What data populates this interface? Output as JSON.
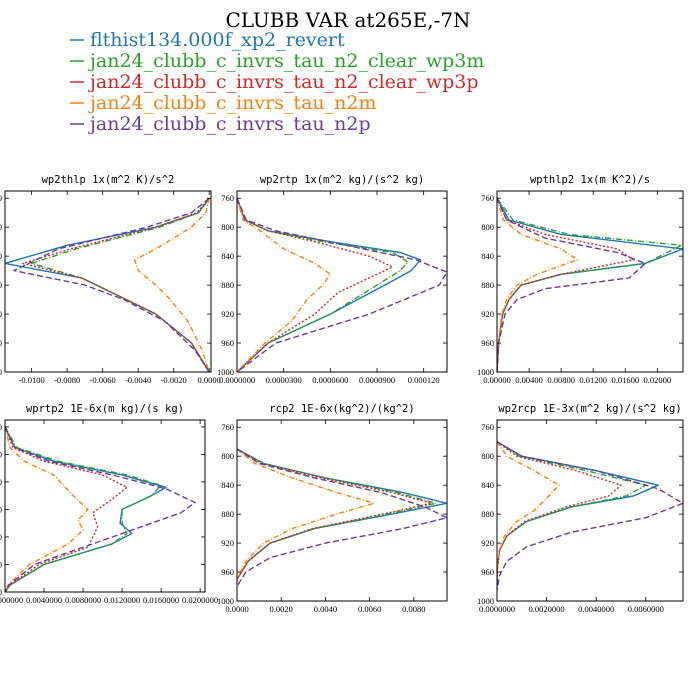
{
  "title": "CLUBB VAR at265E,-7N",
  "legend": [
    {
      "label": "flthist134.000f_xp2_revert",
      "color": "#1f77b4",
      "dash": ""
    },
    {
      "label": "jan24_clubb_c_invrs_tau_n2_clear_wp3m",
      "color": "#2ca02c",
      "dash": "6,2,1,2"
    },
    {
      "label": "jan24_clubb_c_invrs_tau_n2_clear_wp3p",
      "color": "#d62728",
      "dash": "2,2"
    },
    {
      "label": "jan24_clubb_c_invrs_tau_n2m",
      "color": "#ff7f0e",
      "dash": "5,2,1,2"
    },
    {
      "label": "jan24_clubb_c_invrs_tau_n2p",
      "color": "#6a3d9a",
      "dash": "6,3"
    }
  ],
  "chart_data": [
    {
      "type": "line",
      "title": "wp2thlp  1x(m^2 K)/s^2",
      "xlim": [
        -0.0115,
        0.0001
      ],
      "ylim": [
        1000,
        750
      ],
      "xticks": [
        "-0.0100",
        "-0.0080",
        "-0.0060",
        "-0.0040",
        "-0.0020",
        "0.0000"
      ],
      "xtick_values": [
        -0.01,
        -0.008,
        -0.006,
        -0.004,
        -0.002,
        0.0
      ],
      "yticks": [
        "760",
        "800",
        "840",
        "880",
        "920",
        "960",
        "1000"
      ],
      "series": [
        {
          "y": [
            760,
            780,
            800,
            825,
            850,
            870,
            890,
            920,
            960,
            1000
          ],
          "values": [
            0.0,
            -0.0006,
            -0.003,
            -0.008,
            -0.0115,
            -0.0072,
            -0.0055,
            -0.003,
            -0.001,
            0.0
          ]
        },
        {
          "y": [
            760,
            780,
            800,
            830,
            850,
            870,
            890,
            920,
            960,
            1000
          ],
          "values": [
            0.0,
            -0.0006,
            -0.0028,
            -0.0075,
            -0.01,
            -0.0072,
            -0.0055,
            -0.003,
            -0.001,
            0.0
          ]
        },
        {
          "y": [
            760,
            780,
            800,
            830,
            850,
            870,
            890,
            920,
            960,
            1000
          ],
          "values": [
            0.0,
            -0.0007,
            -0.003,
            -0.0078,
            -0.0105,
            -0.0072,
            -0.0055,
            -0.003,
            -0.001,
            0.0
          ]
        },
        {
          "y": [
            760,
            780,
            800,
            830,
            845,
            860,
            880,
            900,
            930,
            970,
            1000
          ],
          "values": [
            0.0,
            -0.0002,
            -0.001,
            -0.003,
            -0.0042,
            -0.004,
            -0.003,
            -0.0022,
            -0.0012,
            -0.0004,
            0.0
          ]
        },
        {
          "y": [
            760,
            780,
            800,
            830,
            860,
            880,
            900,
            930,
            970,
            1000
          ],
          "values": [
            0.0,
            -0.001,
            -0.0035,
            -0.0085,
            -0.011,
            -0.007,
            -0.0048,
            -0.0025,
            -0.0008,
            0.0
          ]
        }
      ]
    },
    {
      "type": "line",
      "title": "wp2rtp  1x(m^2 kg)/(s^2 kg)",
      "xlim": [
        0.0,
        0.000135
      ],
      "ylim": [
        1000,
        750
      ],
      "xticks": [
        "0.0000000",
        "0.0000300",
        "0.0000600",
        "0.0000900",
        "0.000120"
      ],
      "xtick_values": [
        0.0,
        3e-05,
        6e-05,
        9e-05,
        0.00012
      ],
      "yticks": [
        "760",
        "800",
        "840",
        "880",
        "920",
        "960",
        "1000"
      ],
      "series": [
        {
          "y": [
            760,
            790,
            805,
            820,
            835,
            845,
            860,
            880,
            920,
            960,
            1000
          ],
          "values": [
            0.0,
            5e-06,
            2e-05,
            6e-05,
            0.000105,
            0.000118,
            0.000112,
            9.5e-05,
            6e-05,
            2e-05,
            0.0
          ]
        },
        {
          "y": [
            760,
            790,
            805,
            820,
            835,
            848,
            860,
            880,
            920,
            960,
            1000
          ],
          "values": [
            0.0,
            5e-06,
            2e-05,
            5.5e-05,
            0.0001,
            0.00011,
            0.000105,
            9e-05,
            6e-05,
            2e-05,
            0.0
          ]
        },
        {
          "y": [
            760,
            790,
            805,
            820,
            840,
            855,
            870,
            890,
            920,
            960,
            1000
          ],
          "values": [
            0.0,
            5e-06,
            2e-05,
            5e-05,
            8.5e-05,
            0.0001,
            8.5e-05,
            6.5e-05,
            5e-05,
            2e-05,
            0.0
          ]
        },
        {
          "y": [
            760,
            790,
            805,
            830,
            850,
            865,
            880,
            900,
            930,
            960,
            1000
          ],
          "values": [
            0.0,
            4e-06,
            1.5e-05,
            3e-05,
            5e-05,
            6e-05,
            5.5e-05,
            4.5e-05,
            3.5e-05,
            1.8e-05,
            0.0
          ]
        },
        {
          "y": [
            760,
            790,
            805,
            825,
            845,
            862,
            880,
            920,
            960,
            1000
          ],
          "values": [
            0.0,
            6e-06,
            2.5e-05,
            7e-05,
            0.000115,
            0.000135,
            0.00013,
            8.5e-05,
            2.5e-05,
            0.0
          ]
        }
      ]
    },
    {
      "type": "line",
      "title": "wpthlp2  1x(m K^2)/s",
      "xlim": [
        0.0,
        0.0232
      ],
      "ylim": [
        1000,
        750
      ],
      "xticks": [
        "0.00000",
        "0.00400",
        "0.00800",
        "0.01200",
        "0.01600",
        "0.02000"
      ],
      "xtick_values": [
        0.0,
        0.004,
        0.008,
        0.012,
        0.016,
        0.02
      ],
      "yticks": [
        "760",
        "800",
        "840",
        "880",
        "920",
        "960",
        "1000"
      ],
      "series": [
        {
          "y": [
            760,
            790,
            810,
            830,
            850,
            865,
            880,
            900,
            920,
            960,
            1000
          ],
          "values": [
            0.0,
            0.0015,
            0.008,
            0.0232,
            0.0185,
            0.008,
            0.003,
            0.0015,
            0.0007,
            0.0002,
            0.0
          ]
        },
        {
          "y": [
            760,
            790,
            810,
            825,
            850,
            865,
            880,
            900,
            920,
            960,
            1000
          ],
          "values": [
            0.0,
            0.002,
            0.009,
            0.023,
            0.0185,
            0.008,
            0.003,
            0.0015,
            0.0007,
            0.0002,
            0.0
          ]
        },
        {
          "y": [
            760,
            790,
            810,
            830,
            845,
            865,
            880,
            900,
            920,
            960,
            1000
          ],
          "values": [
            0.0,
            0.0012,
            0.006,
            0.015,
            0.017,
            0.008,
            0.003,
            0.0015,
            0.0007,
            0.0002,
            0.0
          ]
        },
        {
          "y": [
            760,
            790,
            810,
            830,
            845,
            865,
            880,
            900,
            920,
            960,
            1000
          ],
          "values": [
            0.0,
            0.0008,
            0.003,
            0.008,
            0.01,
            0.005,
            0.0025,
            0.0012,
            0.0006,
            0.0002,
            0.0
          ]
        },
        {
          "y": [
            760,
            790,
            815,
            835,
            850,
            870,
            885,
            900,
            920,
            960,
            1000
          ],
          "values": [
            0.0,
            0.0012,
            0.006,
            0.015,
            0.0185,
            0.0165,
            0.006,
            0.0025,
            0.001,
            0.0002,
            0.0
          ]
        }
      ]
    },
    {
      "type": "line",
      "title": "wprtp2  1E-6x(m kg)/(s kg)",
      "xlim": [
        0.0,
        0.0205
      ],
      "ylim": [
        1000,
        750
      ],
      "xticks": [
        "0.0000000",
        "0.0040000",
        "0.0080000",
        "0.0120000",
        "0.0160000",
        "0.0200000"
      ],
      "xtick_values": [
        0.0,
        0.004,
        0.008,
        0.012,
        0.016,
        0.02
      ],
      "yticks": [
        "760",
        "800",
        "840",
        "880",
        "920",
        "960",
        "1000"
      ],
      "series": [
        {
          "y": [
            760,
            790,
            810,
            830,
            848,
            860,
            880,
            900,
            915,
            930,
            960,
            990,
            1000
          ],
          "values": [
            0.0,
            0.001,
            0.005,
            0.012,
            0.0165,
            0.015,
            0.012,
            0.0118,
            0.013,
            0.011,
            0.004,
            0.0005,
            0.0
          ]
        },
        {
          "y": [
            760,
            790,
            810,
            830,
            845,
            860,
            880,
            900,
            915,
            930,
            960,
            990,
            1000
          ],
          "values": [
            0.0,
            0.0012,
            0.0055,
            0.0125,
            0.016,
            0.015,
            0.012,
            0.012,
            0.0125,
            0.011,
            0.004,
            0.0005,
            0.0
          ]
        },
        {
          "y": [
            760,
            790,
            810,
            830,
            848,
            865,
            885,
            905,
            920,
            935,
            960,
            990,
            1000
          ],
          "values": [
            0.0,
            0.0008,
            0.004,
            0.01,
            0.0125,
            0.011,
            0.009,
            0.0095,
            0.009,
            0.0085,
            0.0035,
            0.0005,
            0.0
          ]
        },
        {
          "y": [
            760,
            790,
            810,
            830,
            845,
            860,
            880,
            895,
            910,
            930,
            960,
            990,
            1000
          ],
          "values": [
            0.0,
            0.0005,
            0.002,
            0.005,
            0.006,
            0.007,
            0.0085,
            0.0075,
            0.008,
            0.0065,
            0.0025,
            0.0003,
            0.0
          ]
        },
        {
          "y": [
            760,
            790,
            810,
            830,
            850,
            870,
            885,
            900,
            920,
            940,
            960,
            990,
            1000
          ],
          "values": [
            0.0,
            0.001,
            0.0045,
            0.011,
            0.0165,
            0.0195,
            0.018,
            0.015,
            0.011,
            0.007,
            0.003,
            0.0004,
            0.0
          ]
        }
      ]
    },
    {
      "type": "line",
      "title": "rcp2  1E-6x(kg^2)/(kg^2)",
      "xlim": [
        0.0,
        0.0095
      ],
      "ylim": [
        1000,
        750
      ],
      "xticks": [
        "0.0000",
        "0.0020",
        "0.0040",
        "0.0060",
        "0.0080"
      ],
      "xtick_values": [
        0.0,
        0.002,
        0.004,
        0.006,
        0.008
      ],
      "yticks": [
        "760",
        "800",
        "840",
        "880",
        "920",
        "960",
        "1000"
      ],
      "series": [
        {
          "y": [
            790,
            810,
            830,
            850,
            865,
            880,
            900,
            920,
            945,
            970
          ],
          "values": [
            0.0,
            0.0012,
            0.004,
            0.0075,
            0.0095,
            0.007,
            0.0035,
            0.0015,
            0.0005,
            0.0
          ]
        },
        {
          "y": [
            790,
            810,
            830,
            850,
            865,
            880,
            900,
            920,
            945,
            970
          ],
          "values": [
            0.0,
            0.0012,
            0.004,
            0.0072,
            0.009,
            0.0068,
            0.0035,
            0.0015,
            0.0005,
            0.0
          ]
        },
        {
          "y": [
            790,
            810,
            830,
            850,
            865,
            880,
            900,
            920,
            945,
            970
          ],
          "values": [
            0.0,
            0.0011,
            0.0038,
            0.007,
            0.0088,
            0.0066,
            0.0034,
            0.0015,
            0.0005,
            0.0
          ]
        },
        {
          "y": [
            790,
            810,
            830,
            850,
            865,
            880,
            900,
            920,
            945,
            970
          ],
          "values": [
            0.0,
            0.0008,
            0.0025,
            0.0045,
            0.0062,
            0.0045,
            0.0025,
            0.0012,
            0.0004,
            0.0
          ]
        },
        {
          "y": [
            790,
            810,
            830,
            850,
            870,
            885,
            900,
            920,
            940,
            960,
            980
          ],
          "values": [
            0.0,
            0.001,
            0.0035,
            0.0065,
            0.0085,
            0.0095,
            0.0075,
            0.004,
            0.0015,
            0.0004,
            0.0
          ]
        }
      ]
    },
    {
      "type": "line",
      "title": "wp2rcp  1E-3x(m^2 kg)/(s^2 kg)",
      "xlim": [
        0.0,
        0.0075
      ],
      "ylim": [
        1000,
        750
      ],
      "xticks": [
        "0.0000000",
        "0.0020000",
        "0.0040000",
        "0.0060000"
      ],
      "xtick_values": [
        0.0,
        0.002,
        0.004,
        0.006
      ],
      "yticks": [
        "760",
        "800",
        "840",
        "880",
        "920",
        "960",
        "1000"
      ],
      "series": [
        {
          "y": [
            780,
            800,
            820,
            840,
            855,
            870,
            890,
            910,
            930,
            960,
            980
          ],
          "values": [
            0.0,
            0.001,
            0.004,
            0.0065,
            0.0055,
            0.003,
            0.0012,
            0.0004,
            0.0001,
            0.0,
            0.0
          ]
        },
        {
          "y": [
            780,
            800,
            820,
            840,
            855,
            870,
            890,
            910,
            930,
            960,
            980
          ],
          "values": [
            0.0,
            0.0009,
            0.0036,
            0.006,
            0.0052,
            0.003,
            0.0012,
            0.0004,
            0.0001,
            0.0,
            0.0
          ]
        },
        {
          "y": [
            780,
            800,
            820,
            840,
            855,
            870,
            890,
            910,
            930,
            960,
            980
          ],
          "values": [
            0.0,
            0.0008,
            0.0032,
            0.005,
            0.0045,
            0.0028,
            0.0011,
            0.0004,
            0.0001,
            0.0,
            0.0
          ]
        },
        {
          "y": [
            780,
            800,
            820,
            840,
            858,
            875,
            890,
            910,
            930,
            960,
            980
          ],
          "values": [
            0.0,
            0.0004,
            0.0015,
            0.0025,
            0.002,
            0.0015,
            0.0008,
            0.0003,
            0.0001,
            0.0,
            0.0
          ]
        },
        {
          "y": [
            780,
            800,
            820,
            845,
            865,
            885,
            905,
            925,
            945,
            965,
            985
          ],
          "values": [
            0.0,
            0.001,
            0.004,
            0.0065,
            0.0075,
            0.006,
            0.003,
            0.0012,
            0.0004,
            0.0001,
            0.0
          ]
        }
      ]
    }
  ]
}
